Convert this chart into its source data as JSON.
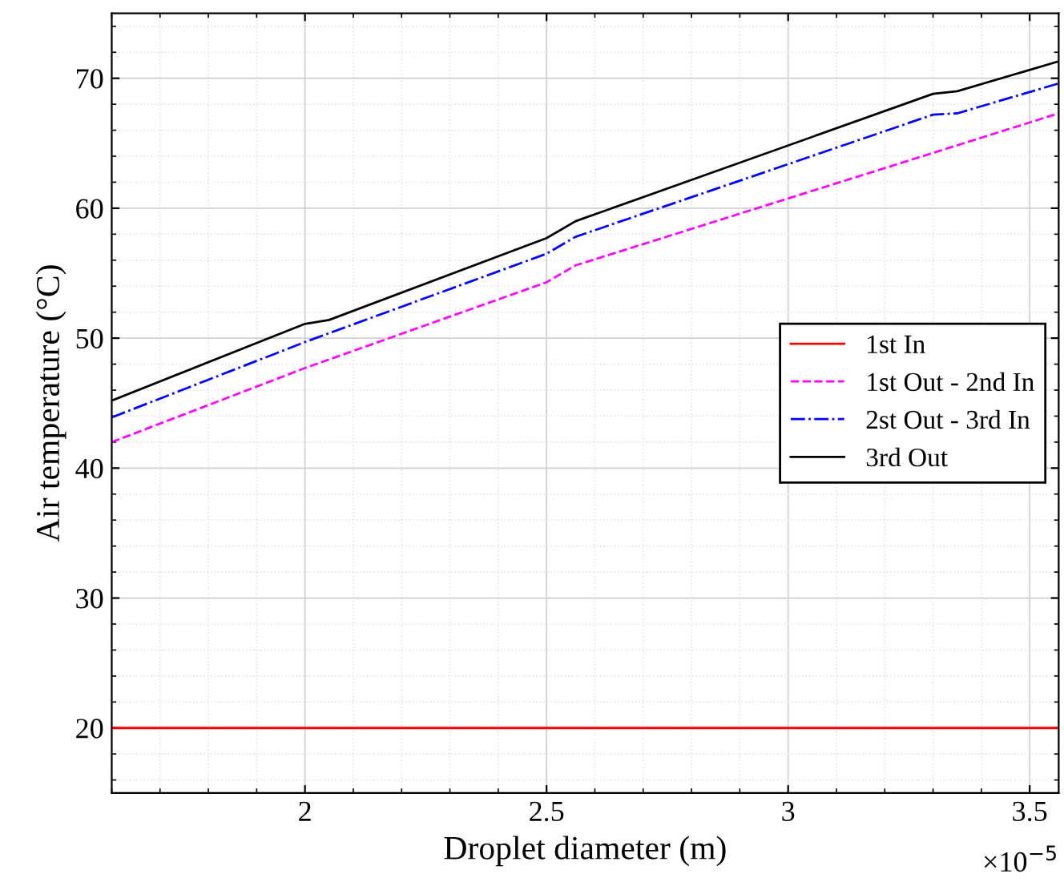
{
  "chart_data": {
    "type": "line",
    "xlabel": "Droplet diameter (m)",
    "ylabel": "Air temperature (°C)",
    "xlim": [
      1.6,
      3.56
    ],
    "xticks": [
      2,
      2.5,
      3,
      3.5
    ],
    "ylim": [
      15,
      75
    ],
    "yticks": [
      20,
      30,
      40,
      50,
      60,
      70
    ],
    "grid": true,
    "legend": "right",
    "annotations": [
      "×10$^{−5}$"
    ],
    "series": [
      {
        "name": "1st In",
        "color": "#ff0000",
        "line_style": "solid",
        "x": [
          1.6,
          3.56
        ],
        "values": [
          20,
          20
        ]
      },
      {
        "name": "1st Out - 2nd In",
        "color": "#ff00ff",
        "line_style": "dashed",
        "x": [
          1.6,
          2.0,
          2.5,
          2.56,
          3.56
        ],
        "values": [
          42.0,
          47.7,
          54.3,
          55.6,
          67.3
        ]
      },
      {
        "name": "2st Out - 3rd In",
        "color": "#0000ff",
        "line_style": "dashdot",
        "x": [
          1.6,
          2.0,
          2.5,
          2.56,
          3.3,
          3.35,
          3.56
        ],
        "values": [
          43.9,
          49.7,
          56.5,
          57.8,
          67.2,
          67.3,
          69.6
        ]
      },
      {
        "name": "3rd Out",
        "color": "#000000",
        "line_style": "solid",
        "x": [
          1.6,
          2.0,
          2.05,
          2.5,
          2.56,
          3.3,
          3.35,
          3.56
        ],
        "values": [
          45.2,
          51.1,
          51.4,
          57.7,
          59.0,
          68.8,
          69.0,
          71.3
        ]
      }
    ]
  }
}
